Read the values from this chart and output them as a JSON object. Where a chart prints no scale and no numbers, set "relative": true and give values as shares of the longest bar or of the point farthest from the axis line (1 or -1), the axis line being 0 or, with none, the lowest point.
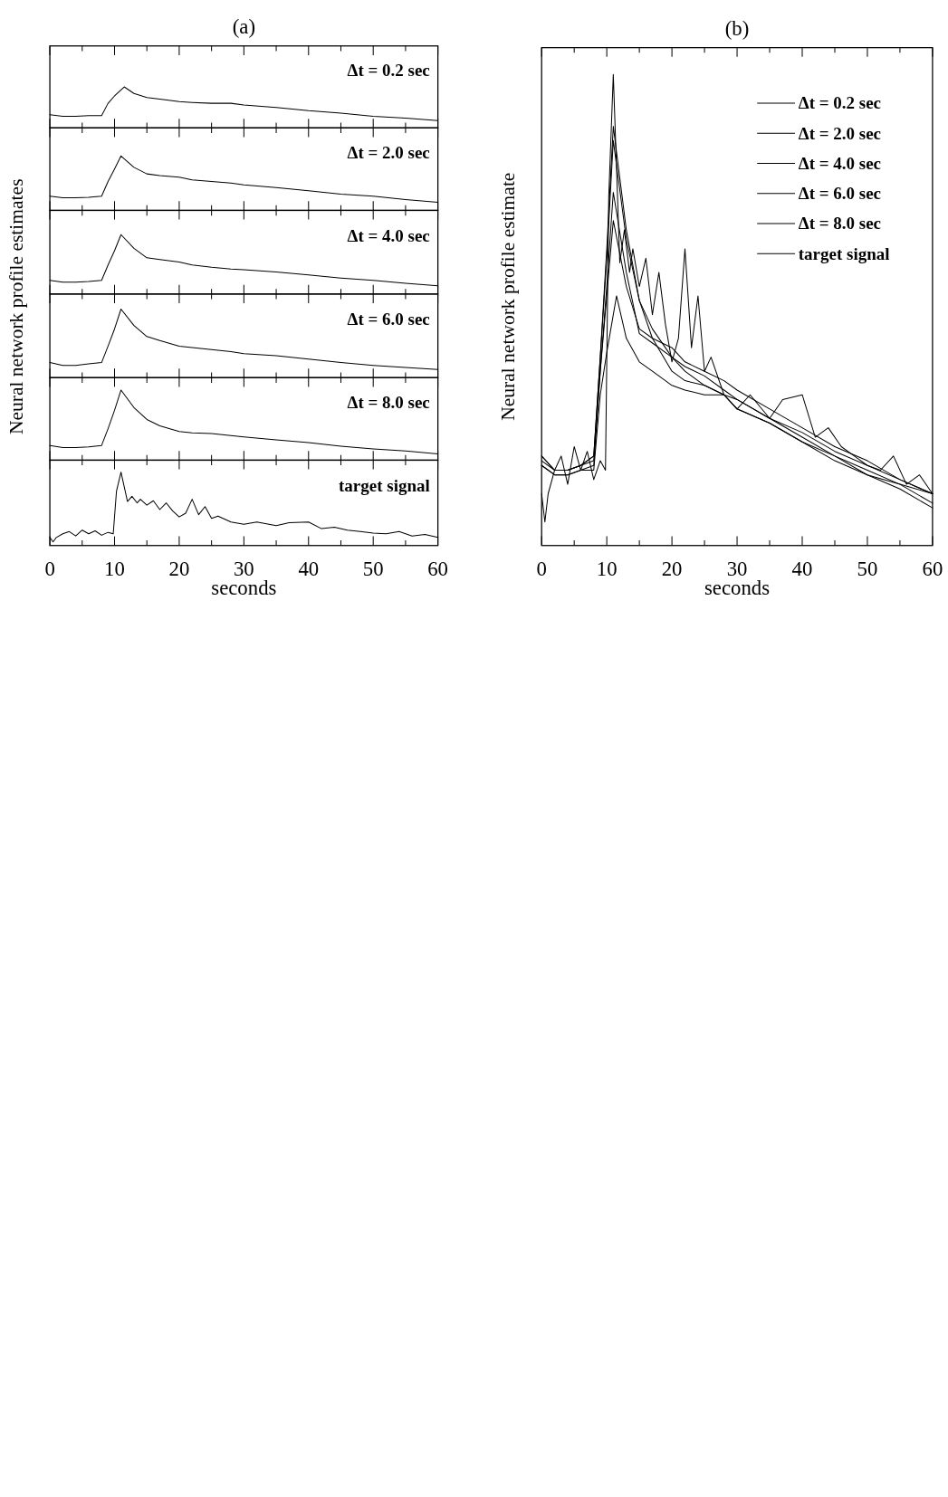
{
  "chart_data": [
    {
      "type": "line",
      "title": "(a)",
      "relative": true,
      "xlim": [
        0,
        60
      ],
      "tick_labels": false,
      "xticks": [
        0,
        {
          "value": 5,
          "label": null
        },
        10,
        {
          "value": 15,
          "label": null
        },
        20,
        {
          "value": 25,
          "label": null
        },
        30,
        {
          "value": 35,
          "label": null
        },
        40,
        {
          "value": 45,
          "label": null
        },
        50,
        {
          "value": 55,
          "label": null
        },
        60
      ],
      "x": [
        0,
        2,
        4,
        6,
        8,
        9,
        10,
        11.5,
        13,
        15,
        17,
        20,
        22,
        25,
        28,
        30,
        35,
        40,
        45,
        50,
        55,
        60
      ],
      "series": [
        {
          "name": "Δt = 0.2 sec",
          "color": "#000000",
          "values": [
            0.32,
            0.28,
            0.28,
            0.3,
            0.3,
            0.6,
            0.78,
            1,
            0.84,
            0.74,
            0.7,
            0.64,
            0.62,
            0.6,
            0.6,
            0.56,
            0.5,
            0.42,
            0.36,
            0.28,
            0.24,
            0.18
          ]
        }
      ]
    },
    {
      "type": "line",
      "relative": true,
      "xlim": [
        0,
        60
      ],
      "tick_labels": false,
      "xticks": [
        0,
        {
          "value": 5,
          "label": null
        },
        10,
        {
          "value": 15,
          "label": null
        },
        20,
        {
          "value": 25,
          "label": null
        },
        30,
        {
          "value": 35,
          "label": null
        },
        40,
        {
          "value": 45,
          "label": null
        },
        50,
        {
          "value": 55,
          "label": null
        },
        60
      ],
      "x": [
        0,
        2,
        4,
        6,
        8,
        9,
        10,
        11,
        13,
        15,
        17,
        20,
        22,
        25,
        28,
        30,
        35,
        40,
        45,
        50,
        55,
        60
      ],
      "series": [
        {
          "name": "Δt = 2.0 sec",
          "color": "#000000",
          "values": [
            0.26,
            0.23,
            0.23,
            0.24,
            0.26,
            0.53,
            0.76,
            1,
            0.79,
            0.67,
            0.64,
            0.61,
            0.56,
            0.53,
            0.5,
            0.47,
            0.42,
            0.36,
            0.3,
            0.26,
            0.2,
            0.15
          ]
        }
      ]
    },
    {
      "type": "line",
      "relative": true,
      "xlim": [
        0,
        60
      ],
      "tick_labels": false,
      "xticks": [
        0,
        {
          "value": 5,
          "label": null
        },
        10,
        {
          "value": 15,
          "label": null
        },
        20,
        {
          "value": 25,
          "label": null
        },
        30,
        {
          "value": 35,
          "label": null
        },
        40,
        {
          "value": 45,
          "label": null
        },
        50,
        {
          "value": 55,
          "label": null
        },
        60
      ],
      "x": [
        0,
        2,
        4,
        6,
        8,
        9,
        10,
        11,
        13,
        15,
        17,
        20,
        22,
        25,
        28,
        30,
        35,
        40,
        45,
        50,
        55,
        60
      ],
      "series": [
        {
          "name": "Δt = 4.0 sec",
          "color": "#000000",
          "values": [
            0.23,
            0.2,
            0.2,
            0.21,
            0.23,
            0.49,
            0.73,
            1,
            0.77,
            0.61,
            0.58,
            0.54,
            0.49,
            0.45,
            0.42,
            0.41,
            0.37,
            0.32,
            0.27,
            0.23,
            0.18,
            0.14
          ]
        }
      ]
    },
    {
      "type": "line",
      "relative": true,
      "xlim": [
        0,
        60
      ],
      "tick_labels": false,
      "xticks": [
        0,
        {
          "value": 5,
          "label": null
        },
        10,
        {
          "value": 15,
          "label": null
        },
        20,
        {
          "value": 25,
          "label": null
        },
        30,
        {
          "value": 35,
          "label": null
        },
        40,
        {
          "value": 45,
          "label": null
        },
        50,
        {
          "value": 55,
          "label": null
        },
        60
      ],
      "x": [
        0,
        2,
        4,
        6,
        8,
        9,
        10,
        11,
        13,
        15,
        17,
        20,
        22,
        25,
        28,
        30,
        35,
        40,
        45,
        50,
        55,
        60
      ],
      "ylabel": "Neural network profile estimates",
      "series": [
        {
          "name": "Δt = 6.0 sec",
          "color": "#000000",
          "values": [
            0.22,
            0.18,
            0.18,
            0.2,
            0.22,
            0.46,
            0.71,
            1,
            0.76,
            0.6,
            0.54,
            0.46,
            0.44,
            0.41,
            0.38,
            0.35,
            0.32,
            0.27,
            0.22,
            0.18,
            0.15,
            0.12
          ]
        }
      ]
    },
    {
      "type": "line",
      "relative": true,
      "xlim": [
        0,
        60
      ],
      "tick_labels": false,
      "xticks": [
        0,
        {
          "value": 5,
          "label": null
        },
        10,
        {
          "value": 15,
          "label": null
        },
        20,
        {
          "value": 25,
          "label": null
        },
        30,
        {
          "value": 35,
          "label": null
        },
        40,
        {
          "value": 45,
          "label": null
        },
        50,
        {
          "value": 55,
          "label": null
        },
        60
      ],
      "x": [
        0,
        2,
        4,
        6,
        8,
        9,
        10,
        11,
        13,
        15,
        17,
        20,
        22,
        25,
        28,
        30,
        35,
        40,
        45,
        50,
        55,
        60
      ],
      "series": [
        {
          "name": "Δt = 8.0 sec",
          "color": "#000000",
          "values": [
            0.21,
            0.18,
            0.18,
            0.19,
            0.21,
            0.45,
            0.71,
            1,
            0.75,
            0.58,
            0.49,
            0.41,
            0.39,
            0.38,
            0.35,
            0.33,
            0.29,
            0.25,
            0.2,
            0.16,
            0.13,
            0.09
          ]
        }
      ]
    },
    {
      "type": "line",
      "xlabel": "seconds",
      "relative": true,
      "xlim": [
        0,
        60
      ],
      "xticks": [
        0,
        {
          "value": 5,
          "label": null
        },
        10,
        {
          "value": 15,
          "label": null
        },
        20,
        {
          "value": 25,
          "label": null
        },
        30,
        {
          "value": 35,
          "label": null
        },
        40,
        {
          "value": 45,
          "label": null
        },
        50,
        {
          "value": 55,
          "label": null
        },
        60
      ],
      "x": [
        0,
        0.5,
        1,
        2,
        3,
        4,
        5,
        6,
        7,
        8,
        9,
        9.8,
        10.3,
        11,
        12,
        12.7,
        13.5,
        14,
        15,
        16,
        17,
        18,
        19,
        20,
        21,
        22,
        23,
        24,
        25,
        26,
        28,
        30,
        32,
        35,
        37,
        40,
        42,
        44,
        46,
        48,
        50,
        52,
        54,
        56,
        58,
        60
      ],
      "series": [
        {
          "name": "target signal",
          "color": "#000000",
          "values": [
            0.11,
            0.05,
            0.11,
            0.16,
            0.19,
            0.13,
            0.21,
            0.16,
            0.2,
            0.14,
            0.18,
            0.16,
            0.74,
            1,
            0.6,
            0.67,
            0.58,
            0.63,
            0.55,
            0.61,
            0.49,
            0.58,
            0.47,
            0.39,
            0.44,
            0.63,
            0.42,
            0.53,
            0.37,
            0.4,
            0.32,
            0.29,
            0.32,
            0.27,
            0.31,
            0.32,
            0.23,
            0.25,
            0.21,
            0.19,
            0.17,
            0.16,
            0.19,
            0.13,
            0.15,
            0.11
          ]
        }
      ]
    },
    {
      "type": "line",
      "title": "(b)",
      "xlabel": "seconds",
      "ylabel": "Neural network profile estimate",
      "relative": true,
      "xlim": [
        0,
        60
      ],
      "legend": "top right",
      "xticks": [
        0,
        {
          "value": 5,
          "label": null
        },
        10,
        {
          "value": 15,
          "label": null
        },
        20,
        {
          "value": 25,
          "label": null
        },
        30,
        {
          "value": 35,
          "label": null
        },
        40,
        {
          "value": 45,
          "label": null
        },
        50,
        {
          "value": 55,
          "label": null
        },
        60
      ],
      "x": [
        0,
        2,
        4,
        6,
        8,
        9,
        10,
        11,
        13,
        15,
        17,
        20,
        22,
        25,
        28,
        30,
        35,
        40,
        45,
        50,
        55,
        60
      ],
      "series": [
        {
          "name": "Δt = 0.2 sec",
          "color": "#000000",
          "x": [
            0,
            2,
            4,
            6,
            8,
            9,
            10,
            11.5,
            13,
            15,
            17,
            20,
            22,
            25,
            28,
            30,
            35,
            40,
            45,
            50,
            55,
            60
          ],
          "values": [
            0.17,
            0.15,
            0.15,
            0.16,
            0.16,
            0.32,
            0.41,
            0.53,
            0.44,
            0.39,
            0.37,
            0.34,
            0.33,
            0.32,
            0.32,
            0.29,
            0.26,
            0.22,
            0.19,
            0.15,
            0.13,
            0.09
          ]
        },
        {
          "name": "Δt = 2.0 sec",
          "color": "#000000",
          "values": [
            0.18,
            0.16,
            0.16,
            0.17,
            0.18,
            0.37,
            0.53,
            0.69,
            0.55,
            0.46,
            0.44,
            0.42,
            0.39,
            0.37,
            0.35,
            0.33,
            0.29,
            0.25,
            0.21,
            0.18,
            0.14,
            0.11
          ]
        },
        {
          "name": "Δt = 4.0 sec",
          "color": "#000000",
          "values": [
            0.17,
            0.15,
            0.15,
            0.16,
            0.17,
            0.37,
            0.55,
            0.75,
            0.58,
            0.45,
            0.43,
            0.4,
            0.37,
            0.34,
            0.32,
            0.31,
            0.27,
            0.24,
            0.2,
            0.17,
            0.14,
            0.11
          ]
        },
        {
          "name": "Δt = 6.0 sec",
          "color": "#000000",
          "values": [
            0.19,
            0.16,
            0.16,
            0.17,
            0.19,
            0.4,
            0.61,
            0.86,
            0.65,
            0.52,
            0.46,
            0.4,
            0.38,
            0.36,
            0.33,
            0.31,
            0.27,
            0.23,
            0.19,
            0.16,
            0.13,
            0.11
          ]
        },
        {
          "name": "Δt = 8.0 sec",
          "color": "#000000",
          "values": [
            0.19,
            0.16,
            0.16,
            0.17,
            0.19,
            0.4,
            0.63,
            0.89,
            0.67,
            0.52,
            0.44,
            0.37,
            0.35,
            0.34,
            0.32,
            0.29,
            0.26,
            0.22,
            0.18,
            0.15,
            0.12,
            0.08
          ]
        },
        {
          "name": "target signal",
          "color": "#000000",
          "x": [
            0,
            0.5,
            1,
            2,
            3,
            4,
            5,
            6,
            7,
            8,
            9,
            9.8,
            10.3,
            11,
            12,
            12.7,
            13.5,
            14,
            15,
            16,
            17,
            18,
            19,
            20,
            21,
            22,
            23,
            24,
            25,
            26,
            28,
            30,
            32,
            35,
            37,
            40,
            42,
            44,
            46,
            48,
            50,
            52,
            54,
            56,
            58,
            60
          ],
          "values": [
            0.11,
            0.05,
            0.11,
            0.16,
            0.19,
            0.13,
            0.21,
            0.16,
            0.2,
            0.14,
            0.18,
            0.16,
            0.74,
            1,
            0.6,
            0.67,
            0.58,
            0.63,
            0.55,
            0.61,
            0.49,
            0.58,
            0.47,
            0.39,
            0.44,
            0.63,
            0.42,
            0.53,
            0.37,
            0.4,
            0.32,
            0.29,
            0.32,
            0.27,
            0.31,
            0.32,
            0.23,
            0.25,
            0.21,
            0.19,
            0.17,
            0.16,
            0.19,
            0.13,
            0.15,
            0.11
          ]
        }
      ]
    }
  ]
}
